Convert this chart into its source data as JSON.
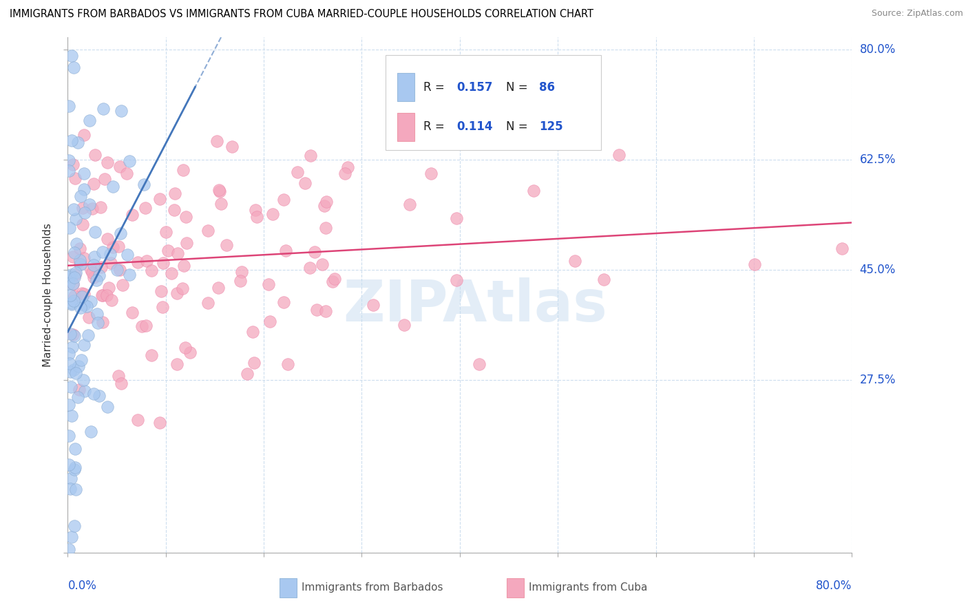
{
  "title": "IMMIGRANTS FROM BARBADOS VS IMMIGRANTS FROM CUBA MARRIED-COUPLE HOUSEHOLDS CORRELATION CHART",
  "source": "Source: ZipAtlas.com",
  "ylabel": "Married-couple Households",
  "barbados_R": 0.157,
  "barbados_N": 86,
  "cuba_R": 0.114,
  "cuba_N": 125,
  "barbados_color": "#a8c8f0",
  "cuba_color": "#f4a8be",
  "barbados_line_color": "#4477bb",
  "cuba_line_color": "#dd4477",
  "watermark_color": "#c8ddf0",
  "y_tick_labels": [
    "27.5%",
    "45.0%",
    "62.5%",
    "80.0%"
  ],
  "y_tick_vals": [
    0.275,
    0.45,
    0.625,
    0.8
  ],
  "x_ticks": [
    0.0,
    0.1,
    0.2,
    0.3,
    0.4,
    0.5,
    0.6,
    0.7,
    0.8
  ],
  "xlim": [
    0.0,
    0.8
  ],
  "ylim": [
    0.0,
    0.82
  ],
  "seed_barbados": 42,
  "seed_cuba": 99
}
